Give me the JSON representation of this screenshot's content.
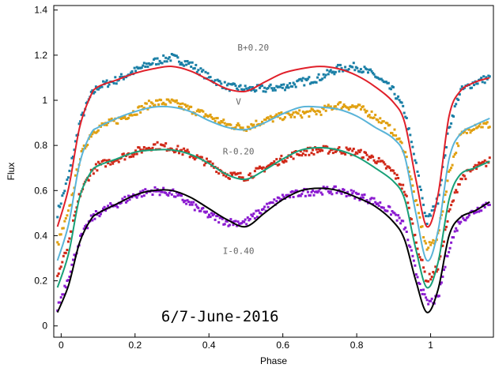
{
  "chart_data": {
    "type": "scatter",
    "title": "",
    "xlabel": "Phase",
    "ylabel": "Flux",
    "annotation": "6/7-June-2016",
    "xlim": [
      -0.02,
      1.17
    ],
    "ylim": [
      -0.05,
      1.42
    ],
    "xticks": [
      0,
      0.2,
      0.4,
      0.6,
      0.8,
      1
    ],
    "yticks": [
      0,
      0.2,
      0.4,
      0.6,
      0.8,
      1,
      1.2,
      1.4
    ],
    "xtick_labels": [
      "0",
      "0.2",
      "0.4",
      "0.6",
      "0.8",
      "1"
    ],
    "ytick_labels": [
      "0",
      "0.2",
      "0.4",
      "0.6",
      "0.8",
      "1",
      "1.2",
      "1.4"
    ],
    "grid": false,
    "series": [
      {
        "name": "B+0.20",
        "point_color": "#1a7fa6",
        "fit_color": "#e0202a",
        "phase": [
          -0.01,
          0.02,
          0.05,
          0.08,
          0.1,
          0.15,
          0.2,
          0.25,
          0.3,
          0.35,
          0.4,
          0.45,
          0.5,
          0.55,
          0.6,
          0.65,
          0.7,
          0.75,
          0.8,
          0.85,
          0.9,
          0.93,
          0.96,
          0.99,
          1.02,
          1.05,
          1.08,
          1.12,
          1.16
        ],
        "points": [
          0.5,
          0.66,
          0.9,
          1.02,
          1.06,
          1.09,
          1.13,
          1.17,
          1.19,
          1.16,
          1.1,
          1.06,
          1.05,
          1.05,
          1.06,
          1.08,
          1.1,
          1.14,
          1.15,
          1.11,
          1.04,
          0.95,
          0.72,
          0.46,
          0.56,
          0.88,
          1.04,
          1.08,
          1.1
        ],
        "fit": [
          0.44,
          0.61,
          0.88,
          1.02,
          1.06,
          1.09,
          1.12,
          1.14,
          1.15,
          1.13,
          1.09,
          1.05,
          1.04,
          1.08,
          1.12,
          1.14,
          1.15,
          1.14,
          1.11,
          1.06,
          0.99,
          0.9,
          0.65,
          0.44,
          0.58,
          0.93,
          1.04,
          1.08,
          1.1
        ]
      },
      {
        "name": "V",
        "point_color": "#e0a010",
        "fit_color": "#5ab4d8",
        "phase": [
          -0.01,
          0.02,
          0.05,
          0.08,
          0.1,
          0.15,
          0.2,
          0.25,
          0.3,
          0.35,
          0.4,
          0.45,
          0.5,
          0.55,
          0.6,
          0.65,
          0.7,
          0.75,
          0.8,
          0.85,
          0.9,
          0.93,
          0.96,
          0.99,
          1.02,
          1.05,
          1.08,
          1.12,
          1.16
        ],
        "points": [
          0.36,
          0.5,
          0.74,
          0.85,
          0.88,
          0.91,
          0.95,
          0.99,
          0.99,
          0.96,
          0.93,
          0.89,
          0.88,
          0.91,
          0.93,
          0.94,
          0.95,
          0.98,
          0.97,
          0.93,
          0.86,
          0.78,
          0.55,
          0.34,
          0.4,
          0.68,
          0.84,
          0.89,
          0.89
        ],
        "fit": [
          0.29,
          0.45,
          0.72,
          0.85,
          0.88,
          0.92,
          0.95,
          0.97,
          0.97,
          0.95,
          0.91,
          0.88,
          0.87,
          0.9,
          0.94,
          0.97,
          0.97,
          0.96,
          0.93,
          0.88,
          0.83,
          0.75,
          0.5,
          0.29,
          0.42,
          0.74,
          0.85,
          0.89,
          0.92
        ]
      },
      {
        "name": "R-0.20",
        "point_color": "#d02818",
        "fit_color": "#18a078",
        "phase": [
          -0.01,
          0.02,
          0.05,
          0.08,
          0.1,
          0.15,
          0.2,
          0.25,
          0.3,
          0.35,
          0.4,
          0.45,
          0.5,
          0.55,
          0.6,
          0.65,
          0.7,
          0.75,
          0.8,
          0.85,
          0.9,
          0.93,
          0.96,
          0.99,
          1.02,
          1.05,
          1.08,
          1.12,
          1.16
        ],
        "points": [
          0.22,
          0.36,
          0.58,
          0.68,
          0.71,
          0.74,
          0.77,
          0.8,
          0.79,
          0.76,
          0.72,
          0.67,
          0.66,
          0.7,
          0.74,
          0.77,
          0.78,
          0.78,
          0.77,
          0.74,
          0.68,
          0.6,
          0.38,
          0.2,
          0.26,
          0.5,
          0.65,
          0.7,
          0.73
        ],
        "fit": [
          0.17,
          0.32,
          0.57,
          0.68,
          0.71,
          0.74,
          0.77,
          0.78,
          0.78,
          0.76,
          0.72,
          0.67,
          0.65,
          0.69,
          0.74,
          0.78,
          0.79,
          0.78,
          0.75,
          0.7,
          0.64,
          0.56,
          0.34,
          0.17,
          0.28,
          0.56,
          0.67,
          0.7,
          0.73
        ]
      },
      {
        "name": "I-0.40",
        "point_color": "#8a1ad0",
        "fit_color": "#000000",
        "phase": [
          -0.01,
          0.02,
          0.05,
          0.08,
          0.1,
          0.15,
          0.2,
          0.25,
          0.3,
          0.35,
          0.4,
          0.45,
          0.5,
          0.55,
          0.6,
          0.65,
          0.7,
          0.75,
          0.8,
          0.85,
          0.9,
          0.93,
          0.96,
          0.99,
          1.02,
          1.05,
          1.08,
          1.12,
          1.16
        ],
        "points": [
          0.08,
          0.22,
          0.38,
          0.47,
          0.5,
          0.54,
          0.58,
          0.6,
          0.59,
          0.54,
          0.49,
          0.46,
          0.46,
          0.52,
          0.57,
          0.59,
          0.6,
          0.6,
          0.58,
          0.55,
          0.5,
          0.44,
          0.24,
          0.1,
          0.12,
          0.35,
          0.47,
          0.51,
          0.55
        ],
        "fit": [
          0.06,
          0.18,
          0.37,
          0.47,
          0.5,
          0.54,
          0.58,
          0.6,
          0.6,
          0.57,
          0.52,
          0.47,
          0.44,
          0.5,
          0.56,
          0.6,
          0.61,
          0.6,
          0.57,
          0.53,
          0.46,
          0.38,
          0.2,
          0.06,
          0.16,
          0.4,
          0.48,
          0.51,
          0.55
        ]
      }
    ]
  }
}
